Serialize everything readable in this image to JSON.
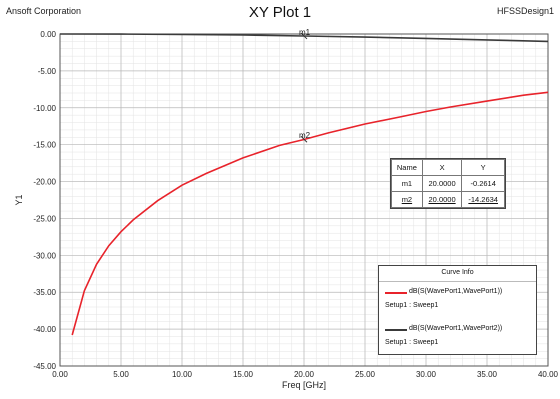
{
  "header": {
    "corporation": "Ansoft Corporation",
    "title": "XY Plot 1",
    "design": "HFSSDesign1"
  },
  "chart_data": {
    "type": "line",
    "title": "XY Plot 1",
    "xlabel": "Freq [GHz]",
    "ylabel": "Y1",
    "xlim": [
      0,
      40
    ],
    "ylim": [
      -45,
      0
    ],
    "grid": true,
    "x_ticks": [
      "0.00",
      "5.00",
      "10.00",
      "15.00",
      "20.00",
      "25.00",
      "30.00",
      "35.00",
      "40.00"
    ],
    "y_ticks": [
      "0.00",
      "-5.00",
      "-10.00",
      "-15.00",
      "-20.00",
      "-25.00",
      "-30.00",
      "-35.00",
      "-40.00",
      "-45.00"
    ],
    "series": [
      {
        "name": "dB(S(WavePort1,WavePort1))",
        "setup": "Setup1 : Sweep1",
        "color": "#e8232b",
        "x": [
          1,
          2,
          3,
          4,
          5,
          6,
          8,
          10,
          12,
          15,
          18,
          20,
          22,
          25,
          28,
          30,
          32,
          35,
          38,
          40
        ],
        "y": [
          -40.8,
          -34.8,
          -31.2,
          -28.7,
          -26.8,
          -25.2,
          -22.6,
          -20.5,
          -18.9,
          -16.8,
          -15.1,
          -14.3,
          -13.4,
          -12.2,
          -11.2,
          -10.5,
          -9.9,
          -9.1,
          -8.3,
          -7.9
        ]
      },
      {
        "name": "dB(S(WavePort1,WavePort2))",
        "setup": "Setup1 : Sweep1",
        "color": "#3a3a3a",
        "x": [
          0,
          5,
          10,
          15,
          20,
          25,
          30,
          35,
          40
        ],
        "y": [
          0,
          -0.01,
          -0.05,
          -0.13,
          -0.27,
          -0.42,
          -0.6,
          -0.8,
          -1.0
        ]
      }
    ],
    "markers": [
      {
        "name": "m1",
        "x": 20.0,
        "y": -0.2614
      },
      {
        "name": "m2",
        "x": 20.0,
        "y": -14.2634
      }
    ],
    "legend_position": "bottom-right"
  },
  "marker_table": {
    "headers": [
      "Name",
      "X",
      "Y"
    ],
    "rows": [
      {
        "name": "m1",
        "x": "20.0000",
        "y": "-0.2614"
      },
      {
        "name": "m2",
        "x": "20.0000",
        "y": "-14.2634"
      }
    ]
  },
  "legend": {
    "title": "Curve Info"
  }
}
